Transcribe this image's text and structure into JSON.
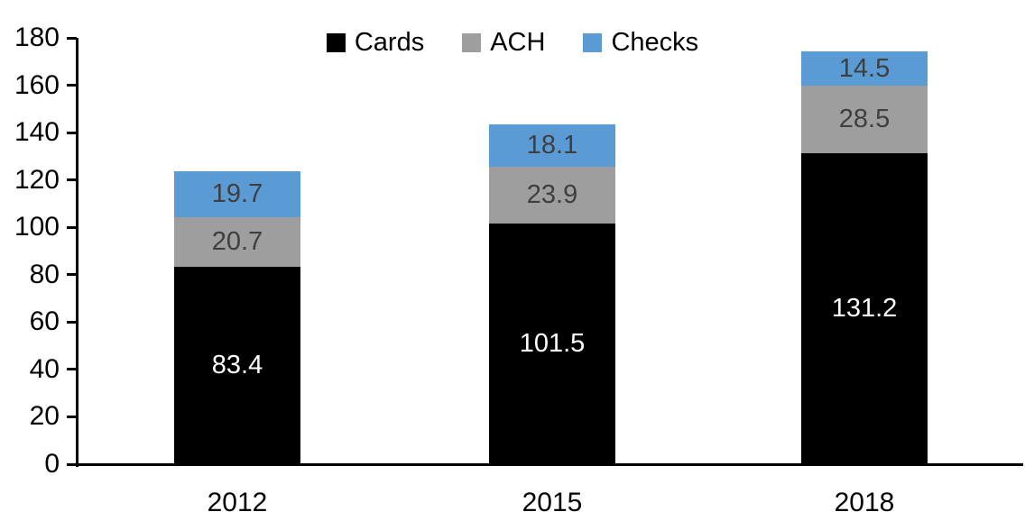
{
  "chart_data": {
    "type": "bar",
    "stacked": true,
    "title": "",
    "xlabel": "",
    "ylabel": "",
    "categories": [
      "2012",
      "2015",
      "2018"
    ],
    "series": [
      {
        "name": "Cards",
        "color": "#000000",
        "label_color": "#FFFFFF",
        "values": [
          83.4,
          101.5,
          131.2
        ]
      },
      {
        "name": "ACH",
        "color": "#9E9E9E",
        "label_color": "#3F3F3F",
        "values": [
          20.7,
          23.9,
          28.5
        ]
      },
      {
        "name": "Checks",
        "color": "#5B9BD5",
        "label_color": "#3F3F3F",
        "values": [
          19.7,
          18.1,
          14.5
        ]
      }
    ],
    "ylim": [
      0,
      180
    ],
    "yticks": [
      0,
      20,
      40,
      60,
      80,
      100,
      120,
      140,
      160,
      180
    ],
    "grid": false,
    "legend_position": "top",
    "axis_color": "#000000",
    "background_color": "#FFFFFF"
  }
}
